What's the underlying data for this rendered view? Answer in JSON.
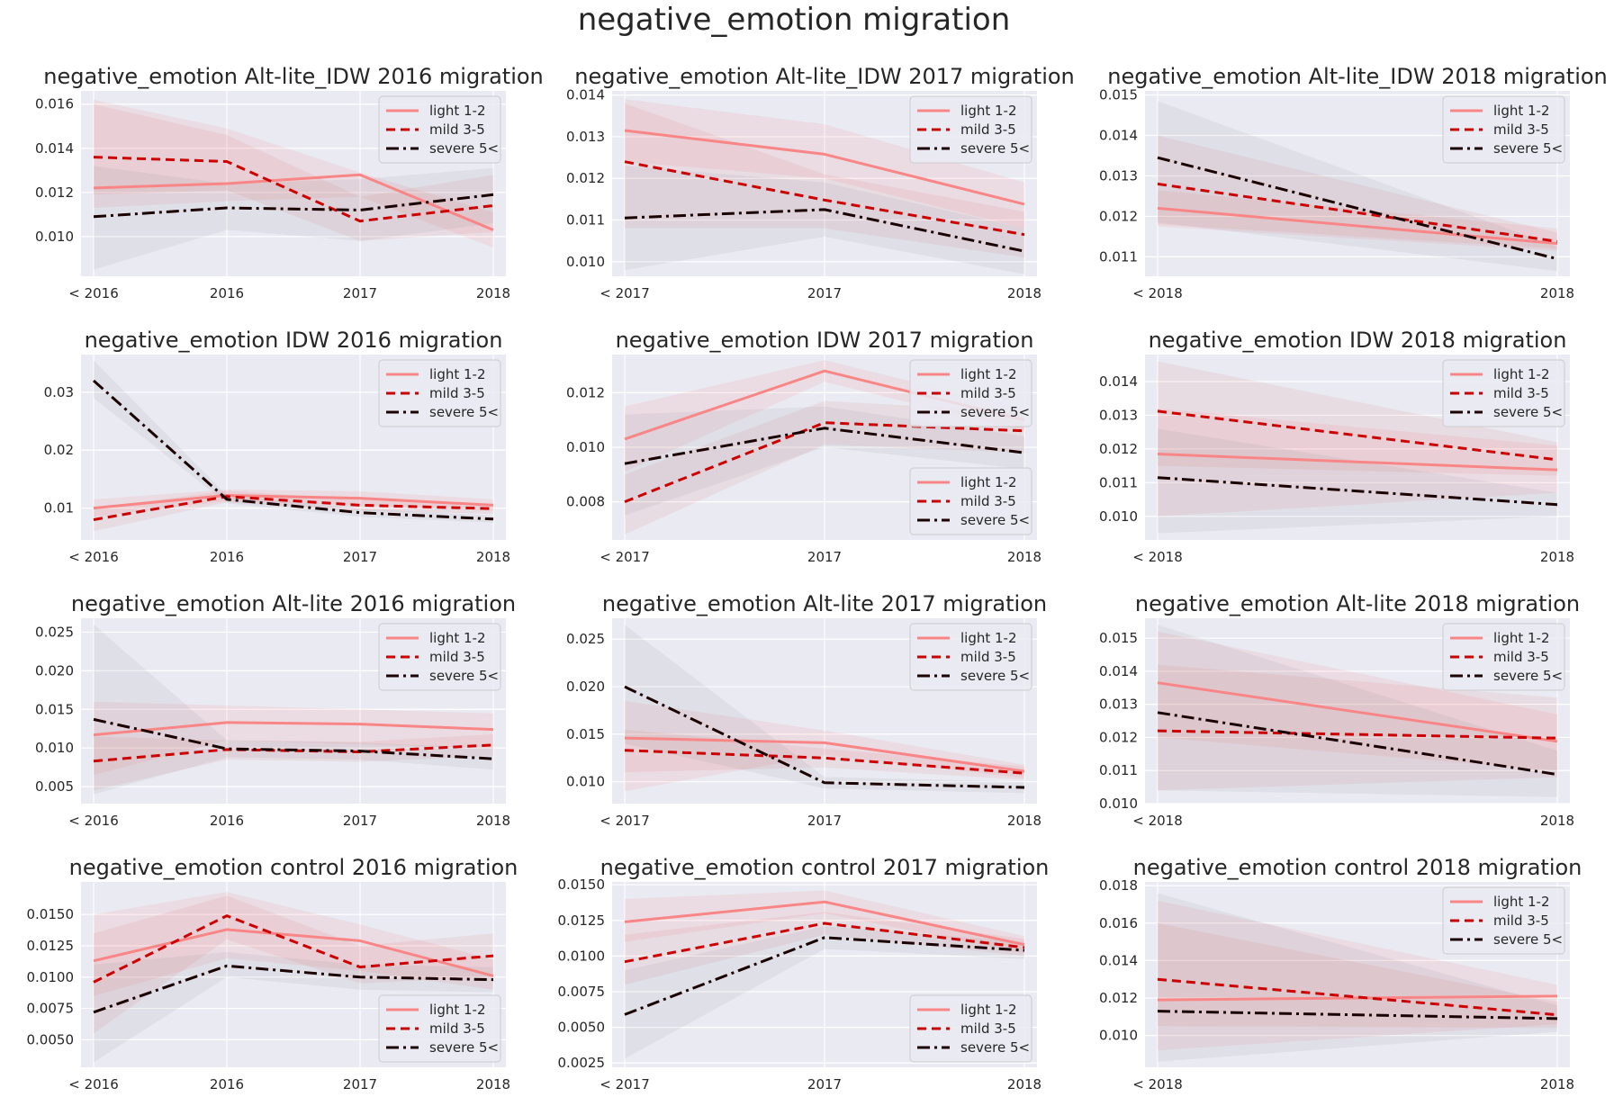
{
  "figure": {
    "title": "negative_emotion migration"
  },
  "legend_labels": [
    "light 1-2",
    "mild 3-5",
    "severe 5<"
  ],
  "colors": {
    "light": "#f98686",
    "mild": "#cc0000",
    "severe": "#1a0000",
    "panel_bg": "#eaeaf2",
    "grid": "#ffffff"
  },
  "chart_data": [
    {
      "type": "line",
      "title": "negative_emotion Alt-lite_IDW 2016 migration",
      "categories": [
        "< 2016",
        "2016",
        "2017",
        "2018"
      ],
      "ylim": [
        0.0082,
        0.0166
      ],
      "yticks": [
        0.01,
        0.012,
        0.014,
        0.016
      ],
      "tick_labels": [
        "0.010",
        "0.012",
        "0.014",
        "0.016"
      ],
      "legend": "top-right",
      "grid": true,
      "series": [
        {
          "name": "light 1-2",
          "values": [
            0.0122,
            0.0124,
            0.0128,
            0.0103
          ],
          "lo": [
            0.0113,
            0.0116,
            0.0118,
            0.0095
          ],
          "hi": [
            0.0162,
            0.0149,
            0.0129,
            0.0111
          ]
        },
        {
          "name": "mild 3-5",
          "values": [
            0.0136,
            0.0134,
            0.0107,
            0.0114
          ],
          "lo": [
            0.0119,
            0.0121,
            0.0098,
            0.0102
          ],
          "hi": [
            0.016,
            0.0146,
            0.0118,
            0.0128
          ]
        },
        {
          "name": "severe 5<",
          "values": [
            0.0109,
            0.0113,
            0.0112,
            0.0119
          ],
          "lo": [
            0.0085,
            0.0103,
            0.0098,
            0.0106
          ],
          "hi": [
            0.0132,
            0.0124,
            0.0126,
            0.0131
          ]
        }
      ]
    },
    {
      "type": "line",
      "title": "negative_emotion Alt-lite_IDW 2017 migration",
      "categories": [
        "< 2017",
        "2017",
        "2018"
      ],
      "ylim": [
        0.00965,
        0.0141
      ],
      "yticks": [
        0.01,
        0.011,
        0.012,
        0.013,
        0.014
      ],
      "tick_labels": [
        "0.010",
        "0.011",
        "0.012",
        "0.013",
        "0.014"
      ],
      "legend": "top-right",
      "grid": true,
      "series": [
        {
          "name": "light 1-2",
          "values": [
            0.01315,
            0.01258,
            0.01138
          ],
          "lo": [
            0.0124,
            0.012,
            0.0108
          ],
          "hi": [
            0.0139,
            0.0133,
            0.0119
          ]
        },
        {
          "name": "mild 3-5",
          "values": [
            0.0124,
            0.01148,
            0.01065
          ],
          "lo": [
            0.0108,
            0.0108,
            0.0101
          ],
          "hi": [
            0.0138,
            0.0121,
            0.0112
          ]
        },
        {
          "name": "severe 5<",
          "values": [
            0.01105,
            0.01125,
            0.01025
          ],
          "lo": [
            0.0098,
            0.0106,
            0.0097
          ],
          "hi": [
            0.0123,
            0.0119,
            0.0108
          ]
        }
      ]
    },
    {
      "type": "line",
      "title": "negative_emotion Alt-lite_IDW 2018 migration",
      "categories": [
        "< 2018",
        "2018"
      ],
      "ylim": [
        0.01052,
        0.0151
      ],
      "yticks": [
        0.011,
        0.012,
        0.013,
        0.014,
        0.015
      ],
      "tick_labels": [
        "0.011",
        "0.012",
        "0.013",
        "0.014",
        "0.015"
      ],
      "legend": "top-right",
      "grid": true,
      "series": [
        {
          "name": "light 1-2",
          "values": [
            0.0122,
            0.01133
          ],
          "lo": [
            0.01175,
            0.01115
          ],
          "hi": [
            0.01265,
            0.0117
          ]
        },
        {
          "name": "mild 3-5",
          "values": [
            0.0128,
            0.01138
          ],
          "lo": [
            0.0118,
            0.0112
          ],
          "hi": [
            0.014,
            0.0116
          ]
        },
        {
          "name": "severe 5<",
          "values": [
            0.01345,
            0.01095
          ],
          "lo": [
            0.01185,
            0.01065
          ],
          "hi": [
            0.01485,
            0.01125
          ]
        }
      ]
    },
    {
      "type": "line",
      "title": "negative_emotion IDW 2016 migration",
      "categories": [
        "< 2016",
        "2016",
        "2017",
        "2018"
      ],
      "ylim": [
        0.0045,
        0.0365
      ],
      "yticks": [
        0.01,
        0.02,
        0.03
      ],
      "tick_labels": [
        "0.01",
        "0.02",
        "0.03"
      ],
      "legend": "top-right",
      "grid": true,
      "series": [
        {
          "name": "light 1-2",
          "values": [
            0.01,
            0.0122,
            0.0117,
            0.0105
          ],
          "lo": [
            0.0085,
            0.0112,
            0.0105,
            0.0095
          ],
          "hi": [
            0.0115,
            0.0132,
            0.0129,
            0.0115
          ]
        },
        {
          "name": "mild 3-5",
          "values": [
            0.008,
            0.012,
            0.0105,
            0.0099
          ],
          "lo": [
            0.006,
            0.011,
            0.0095,
            0.009
          ],
          "hi": [
            0.01,
            0.013,
            0.0115,
            0.0108
          ]
        },
        {
          "name": "severe 5<",
          "values": [
            0.032,
            0.0115,
            0.0092,
            0.0081
          ],
          "lo": [
            0.029,
            0.0108,
            0.0085,
            0.0075
          ],
          "hi": [
            0.0355,
            0.0122,
            0.0099,
            0.0087
          ]
        }
      ]
    },
    {
      "type": "line",
      "title": "negative_emotion IDW 2017 migration",
      "categories": [
        "< 2017",
        "2017",
        "2018"
      ],
      "ylim": [
        0.0066,
        0.0134
      ],
      "yticks": [
        0.008,
        0.01,
        0.012
      ],
      "tick_labels": [
        "0.008",
        "0.010",
        "0.012"
      ],
      "legend": "upper-right and lower-right",
      "grid": true,
      "legend_positions": [
        "top-right",
        "bottom-right"
      ],
      "series": [
        {
          "name": "light 1-2",
          "values": [
            0.0103,
            0.0128,
            0.011
          ],
          "lo": [
            0.0091,
            0.0124,
            0.0106
          ],
          "hi": [
            0.0115,
            0.0132,
            0.0114
          ]
        },
        {
          "name": "mild 3-5",
          "values": [
            0.008,
            0.0109,
            0.0106
          ],
          "lo": [
            0.0068,
            0.0101,
            0.0098
          ],
          "hi": [
            0.009,
            0.0117,
            0.0113
          ]
        },
        {
          "name": "severe 5<",
          "values": [
            0.0094,
            0.0107,
            0.0098
          ],
          "lo": [
            0.0075,
            0.01,
            0.0092
          ],
          "hi": [
            0.0112,
            0.0115,
            0.0104
          ]
        }
      ]
    },
    {
      "type": "line",
      "title": "negative_emotion IDW 2018 migration",
      "categories": [
        "< 2018",
        "2018"
      ],
      "ylim": [
        0.0093,
        0.0148
      ],
      "yticks": [
        0.01,
        0.011,
        0.012,
        0.013,
        0.014
      ],
      "tick_labels": [
        "0.010",
        "0.011",
        "0.012",
        "0.013",
        "0.014"
      ],
      "legend": "top-right",
      "grid": true,
      "series": [
        {
          "name": "light 1-2",
          "values": [
            0.01185,
            0.01138
          ],
          "lo": [
            0.01,
            0.0107
          ],
          "hi": [
            0.0132,
            0.0121
          ]
        },
        {
          "name": "mild 3-5",
          "values": [
            0.01312,
            0.01168
          ],
          "lo": [
            0.0115,
            0.0112
          ],
          "hi": [
            0.0146,
            0.0122
          ]
        },
        {
          "name": "severe 5<",
          "values": [
            0.01115,
            0.01035
          ],
          "lo": [
            0.0095,
            0.01
          ],
          "hi": [
            0.0126,
            0.0107
          ]
        }
      ]
    },
    {
      "type": "line",
      "title": "negative_emotion Alt-lite 2016 migration",
      "categories": [
        "< 2016",
        "2016",
        "2017",
        "2018"
      ],
      "ylim": [
        0.0028,
        0.0268
      ],
      "yticks": [
        0.005,
        0.01,
        0.015,
        0.02,
        0.025
      ],
      "tick_labels": [
        "0.005",
        "0.010",
        "0.015",
        "0.020",
        "0.025"
      ],
      "legend": "top-right",
      "grid": true,
      "series": [
        {
          "name": "light 1-2",
          "values": [
            0.0117,
            0.0133,
            0.0131,
            0.0124
          ],
          "lo": [
            0.0065,
            0.011,
            0.0105,
            0.01
          ],
          "hi": [
            0.016,
            0.0155,
            0.015,
            0.0145
          ]
        },
        {
          "name": "mild 3-5",
          "values": [
            0.0083,
            0.0098,
            0.0095,
            0.0104
          ],
          "lo": [
            0.0045,
            0.0085,
            0.0082,
            0.009
          ],
          "hi": [
            0.0115,
            0.011,
            0.0108,
            0.0118
          ]
        },
        {
          "name": "severe 5<",
          "values": [
            0.0137,
            0.0099,
            0.0096,
            0.0086
          ],
          "lo": [
            0.004,
            0.0088,
            0.0085,
            0.0072
          ],
          "hi": [
            0.026,
            0.011,
            0.0107,
            0.01
          ]
        }
      ]
    },
    {
      "type": "line",
      "title": "negative_emotion Alt-lite 2017 migration",
      "categories": [
        "< 2017",
        "2017",
        "2018"
      ],
      "ylim": [
        0.0077,
        0.0272
      ],
      "yticks": [
        0.01,
        0.015,
        0.02,
        0.025
      ],
      "tick_labels": [
        "0.010",
        "0.015",
        "0.020",
        "0.025"
      ],
      "legend": "top-right",
      "grid": true,
      "series": [
        {
          "name": "light 1-2",
          "values": [
            0.0146,
            0.0141,
            0.0111
          ],
          "lo": [
            0.009,
            0.0128,
            0.0104
          ],
          "hi": [
            0.0185,
            0.0154,
            0.0118
          ]
        },
        {
          "name": "mild 3-5",
          "values": [
            0.0133,
            0.0125,
            0.0109
          ],
          "lo": [
            0.011,
            0.0115,
            0.0102
          ],
          "hi": [
            0.0155,
            0.0135,
            0.0116
          ]
        },
        {
          "name": "severe 5<",
          "values": [
            0.02,
            0.0099,
            0.0094
          ],
          "lo": [
            0.014,
            0.0093,
            0.0088
          ],
          "hi": [
            0.0265,
            0.0105,
            0.01
          ]
        }
      ]
    },
    {
      "type": "line",
      "title": "negative_emotion Alt-lite 2018 migration",
      "categories": [
        "< 2018",
        "2018"
      ],
      "ylim": [
        0.01,
        0.0156
      ],
      "yticks": [
        0.01,
        0.011,
        0.012,
        0.013,
        0.014,
        0.015
      ],
      "tick_labels": [
        "0.010",
        "0.011",
        "0.012",
        "0.013",
        "0.014",
        "0.015"
      ],
      "legend": "top-right",
      "grid": true,
      "series": [
        {
          "name": "light 1-2",
          "values": [
            0.01365,
            0.01188
          ],
          "lo": [
            0.012,
            0.011
          ],
          "hi": [
            0.0152,
            0.0127
          ]
        },
        {
          "name": "mild 3-5",
          "values": [
            0.0122,
            0.01198
          ],
          "lo": [
            0.0104,
            0.0108
          ],
          "hi": [
            0.0142,
            0.0132
          ]
        },
        {
          "name": "severe 5<",
          "values": [
            0.01275,
            0.01088
          ],
          "lo": [
            0.0104,
            0.0102
          ],
          "hi": [
            0.0154,
            0.0116
          ]
        }
      ]
    },
    {
      "type": "line",
      "title": "negative_emotion control 2016 migration",
      "categories": [
        "< 2016",
        "2016",
        "2017",
        "2018"
      ],
      "ylim": [
        0.0028,
        0.0176
      ],
      "yticks": [
        0.005,
        0.0075,
        0.01,
        0.0125,
        0.015
      ],
      "tick_labels": [
        "0.0050",
        "0.0075",
        "0.0100",
        "0.0125",
        "0.0150"
      ],
      "legend": "bottom-right",
      "grid": true,
      "series": [
        {
          "name": "light 1-2",
          "values": [
            0.0113,
            0.0138,
            0.0129,
            0.0101
          ],
          "lo": [
            0.0085,
            0.0115,
            0.0105,
            0.009
          ],
          "hi": [
            0.015,
            0.0168,
            0.0142,
            0.0114
          ]
        },
        {
          "name": "mild 3-5",
          "values": [
            0.0096,
            0.0149,
            0.0108,
            0.0117
          ],
          "lo": [
            0.0055,
            0.013,
            0.0095,
            0.01
          ],
          "hi": [
            0.0135,
            0.0165,
            0.0125,
            0.0135
          ]
        },
        {
          "name": "severe 5<",
          "values": [
            0.0072,
            0.0109,
            0.01,
            0.0098
          ],
          "lo": [
            0.0032,
            0.01,
            0.009,
            0.0088
          ],
          "hi": [
            0.011,
            0.012,
            0.011,
            0.0108
          ]
        }
      ]
    },
    {
      "type": "line",
      "title": "negative_emotion control 2017 migration",
      "categories": [
        "< 2017",
        "2017",
        "2018"
      ],
      "ylim": [
        0.0022,
        0.0152
      ],
      "yticks": [
        0.0025,
        0.005,
        0.0075,
        0.01,
        0.0125,
        0.015
      ],
      "tick_labels": [
        "0.0025",
        "0.0050",
        "0.0075",
        "0.0100",
        "0.0125",
        "0.0150"
      ],
      "legend": "bottom-right",
      "grid": true,
      "series": [
        {
          "name": "light 1-2",
          "values": [
            0.0124,
            0.0138,
            0.0108
          ],
          "lo": [
            0.011,
            0.013,
            0.0102
          ],
          "hi": [
            0.014,
            0.0146,
            0.0114
          ]
        },
        {
          "name": "mild 3-5",
          "values": [
            0.0096,
            0.0123,
            0.0106
          ],
          "lo": [
            0.008,
            0.0115,
            0.01
          ],
          "hi": [
            0.0115,
            0.0131,
            0.0112
          ]
        },
        {
          "name": "severe 5<",
          "values": [
            0.0059,
            0.0113,
            0.0104
          ],
          "lo": [
            0.0028,
            0.0105,
            0.0098
          ],
          "hi": [
            0.009,
            0.0121,
            0.011
          ]
        }
      ]
    },
    {
      "type": "line",
      "title": "negative_emotion control 2018 migration",
      "categories": [
        "< 2018",
        "2018"
      ],
      "ylim": [
        0.0083,
        0.0182
      ],
      "yticks": [
        0.01,
        0.012,
        0.014,
        0.016,
        0.018
      ],
      "tick_labels": [
        "0.010",
        "0.012",
        "0.014",
        "0.016",
        "0.018"
      ],
      "legend": "top-right",
      "grid": true,
      "series": [
        {
          "name": "light 1-2",
          "values": [
            0.0119,
            0.0121
          ],
          "lo": [
            0.0092,
            0.0106
          ],
          "hi": [
            0.0172,
            0.0127
          ]
        },
        {
          "name": "mild 3-5",
          "values": [
            0.013,
            0.0111
          ],
          "lo": [
            0.0105,
            0.0104
          ],
          "hi": [
            0.016,
            0.0118
          ]
        },
        {
          "name": "severe 5<",
          "values": [
            0.0113,
            0.0109
          ],
          "lo": [
            0.0086,
            0.0102
          ],
          "hi": [
            0.0176,
            0.0116
          ]
        }
      ]
    }
  ]
}
